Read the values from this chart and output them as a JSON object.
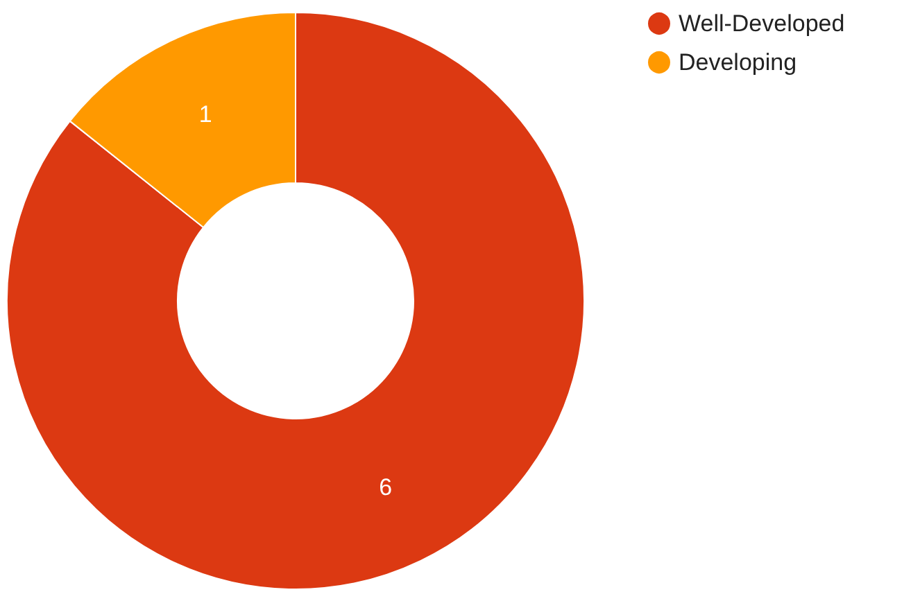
{
  "chart_data": {
    "type": "donut",
    "categories": [
      "Well-Developed",
      "Developing"
    ],
    "values": [
      6,
      1
    ],
    "colors": [
      "#dc3912",
      "#ff9900"
    ],
    "data_labels": true,
    "legend": "top right"
  }
}
